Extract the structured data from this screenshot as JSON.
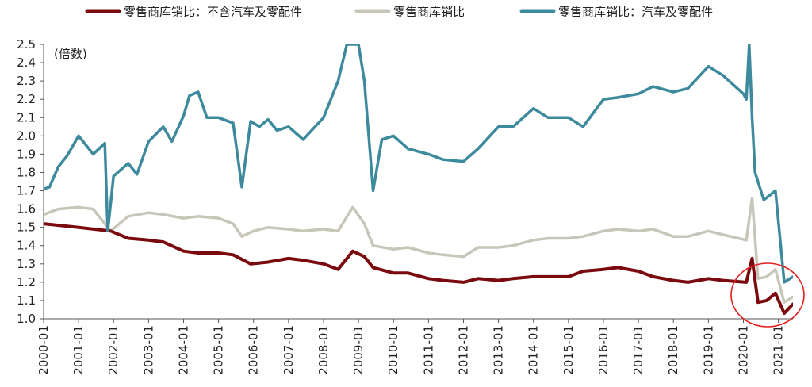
{
  "chart_data": {
    "type": "line",
    "title": "",
    "unit_label": "(倍数)",
    "xlabel": "",
    "ylabel": "",
    "ylim": [
      1.0,
      2.5
    ],
    "yticks": [
      "1.0",
      "1.1",
      "1.2",
      "1.3",
      "1.4",
      "1.5",
      "1.6",
      "1.7",
      "1.8",
      "1.9",
      "2.0",
      "2.1",
      "2.2",
      "2.3",
      "2.4",
      "2.5"
    ],
    "x_range": [
      "2000-01",
      "2021-06"
    ],
    "xticks": [
      "2000-01",
      "2001-01",
      "2002-01",
      "2003-01",
      "2004-01",
      "2005-01",
      "2006-01",
      "2007-01",
      "2008-01",
      "2009-01",
      "2010-01",
      "2011-01",
      "2012-01",
      "2013-01",
      "2014-01",
      "2015-01",
      "2016-01",
      "2017-01",
      "2018-01",
      "2019-01",
      "2020-01",
      "2021-01"
    ],
    "grid": false,
    "legend": "top",
    "series": [
      {
        "name": "零售商库销比：不含汽车及零配件",
        "color": "#7b0a0e",
        "points": [
          [
            "2000-01",
            1.52
          ],
          [
            "2001-01",
            1.5
          ],
          [
            "2001-12",
            1.48
          ],
          [
            "2002-06",
            1.44
          ],
          [
            "2003-01",
            1.43
          ],
          [
            "2003-06",
            1.42
          ],
          [
            "2004-01",
            1.37
          ],
          [
            "2004-06",
            1.36
          ],
          [
            "2005-01",
            1.36
          ],
          [
            "2005-06",
            1.35
          ],
          [
            "2005-12",
            1.3
          ],
          [
            "2006-06",
            1.31
          ],
          [
            "2007-01",
            1.33
          ],
          [
            "2007-06",
            1.32
          ],
          [
            "2008-01",
            1.3
          ],
          [
            "2008-06",
            1.27
          ],
          [
            "2008-11",
            1.37
          ],
          [
            "2009-03",
            1.34
          ],
          [
            "2009-06",
            1.28
          ],
          [
            "2010-01",
            1.25
          ],
          [
            "2010-06",
            1.25
          ],
          [
            "2011-01",
            1.22
          ],
          [
            "2011-06",
            1.21
          ],
          [
            "2012-01",
            1.2
          ],
          [
            "2012-06",
            1.22
          ],
          [
            "2013-01",
            1.21
          ],
          [
            "2013-06",
            1.22
          ],
          [
            "2014-01",
            1.23
          ],
          [
            "2014-06",
            1.23
          ],
          [
            "2015-01",
            1.23
          ],
          [
            "2015-06",
            1.26
          ],
          [
            "2016-01",
            1.27
          ],
          [
            "2016-06",
            1.28
          ],
          [
            "2017-01",
            1.26
          ],
          [
            "2017-06",
            1.23
          ],
          [
            "2018-01",
            1.21
          ],
          [
            "2018-06",
            1.2
          ],
          [
            "2019-01",
            1.22
          ],
          [
            "2019-06",
            1.21
          ],
          [
            "2020-02",
            1.2
          ],
          [
            "2020-04",
            1.33
          ],
          [
            "2020-06",
            1.09
          ],
          [
            "2020-09",
            1.1
          ],
          [
            "2020-12",
            1.14
          ],
          [
            "2021-03",
            1.03
          ],
          [
            "2021-06",
            1.08
          ]
        ]
      },
      {
        "name": "零售商库销比",
        "color": "#c8c6b8",
        "points": [
          [
            "2000-01",
            1.57
          ],
          [
            "2000-06",
            1.6
          ],
          [
            "2001-01",
            1.61
          ],
          [
            "2001-06",
            1.6
          ],
          [
            "2001-12",
            1.48
          ],
          [
            "2002-06",
            1.56
          ],
          [
            "2003-01",
            1.58
          ],
          [
            "2003-06",
            1.57
          ],
          [
            "2004-01",
            1.55
          ],
          [
            "2004-06",
            1.56
          ],
          [
            "2005-01",
            1.55
          ],
          [
            "2005-06",
            1.52
          ],
          [
            "2005-09",
            1.45
          ],
          [
            "2006-01",
            1.48
          ],
          [
            "2006-06",
            1.5
          ],
          [
            "2007-01",
            1.49
          ],
          [
            "2007-06",
            1.48
          ],
          [
            "2008-01",
            1.49
          ],
          [
            "2008-06",
            1.48
          ],
          [
            "2008-11",
            1.61
          ],
          [
            "2009-03",
            1.52
          ],
          [
            "2009-06",
            1.4
          ],
          [
            "2010-01",
            1.38
          ],
          [
            "2010-06",
            1.39
          ],
          [
            "2011-01",
            1.36
          ],
          [
            "2011-06",
            1.35
          ],
          [
            "2012-01",
            1.34
          ],
          [
            "2012-06",
            1.39
          ],
          [
            "2013-01",
            1.39
          ],
          [
            "2013-06",
            1.4
          ],
          [
            "2014-01",
            1.43
          ],
          [
            "2014-06",
            1.44
          ],
          [
            "2015-01",
            1.44
          ],
          [
            "2015-06",
            1.45
          ],
          [
            "2016-01",
            1.48
          ],
          [
            "2016-06",
            1.49
          ],
          [
            "2017-01",
            1.48
          ],
          [
            "2017-06",
            1.49
          ],
          [
            "2018-01",
            1.45
          ],
          [
            "2018-06",
            1.45
          ],
          [
            "2019-01",
            1.48
          ],
          [
            "2019-06",
            1.46
          ],
          [
            "2020-02",
            1.43
          ],
          [
            "2020-04",
            1.66
          ],
          [
            "2020-06",
            1.22
          ],
          [
            "2020-09",
            1.23
          ],
          [
            "2020-12",
            1.27
          ],
          [
            "2021-03",
            1.09
          ],
          [
            "2021-06",
            1.12
          ]
        ]
      },
      {
        "name": "零售商库销比：汽车及零配件",
        "color": "#3d8a9d",
        "points": [
          [
            "2000-01",
            1.71
          ],
          [
            "2000-03",
            1.72
          ],
          [
            "2000-06",
            1.83
          ],
          [
            "2000-09",
            1.89
          ],
          [
            "2001-01",
            2.0
          ],
          [
            "2001-06",
            1.9
          ],
          [
            "2001-10",
            1.96
          ],
          [
            "2001-11",
            1.48
          ],
          [
            "2002-01",
            1.78
          ],
          [
            "2002-06",
            1.85
          ],
          [
            "2002-09",
            1.79
          ],
          [
            "2003-01",
            1.97
          ],
          [
            "2003-06",
            2.05
          ],
          [
            "2003-09",
            1.97
          ],
          [
            "2004-01",
            2.11
          ],
          [
            "2004-03",
            2.22
          ],
          [
            "2004-06",
            2.24
          ],
          [
            "2004-09",
            2.1
          ],
          [
            "2005-01",
            2.1
          ],
          [
            "2005-06",
            2.07
          ],
          [
            "2005-09",
            1.72
          ],
          [
            "2005-12",
            2.08
          ],
          [
            "2006-03",
            2.05
          ],
          [
            "2006-06",
            2.09
          ],
          [
            "2006-09",
            2.03
          ],
          [
            "2007-01",
            2.05
          ],
          [
            "2007-06",
            1.98
          ],
          [
            "2008-01",
            2.1
          ],
          [
            "2008-06",
            2.3
          ],
          [
            "2008-09",
            2.5
          ],
          [
            "2009-01",
            2.5
          ],
          [
            "2009-03",
            2.3
          ],
          [
            "2009-06",
            1.7
          ],
          [
            "2009-09",
            1.98
          ],
          [
            "2010-01",
            2.0
          ],
          [
            "2010-06",
            1.93
          ],
          [
            "2011-01",
            1.9
          ],
          [
            "2011-06",
            1.87
          ],
          [
            "2012-01",
            1.86
          ],
          [
            "2012-06",
            1.93
          ],
          [
            "2013-01",
            2.05
          ],
          [
            "2013-06",
            2.05
          ],
          [
            "2014-01",
            2.15
          ],
          [
            "2014-06",
            2.1
          ],
          [
            "2015-01",
            2.1
          ],
          [
            "2015-06",
            2.05
          ],
          [
            "2016-01",
            2.2
          ],
          [
            "2016-06",
            2.21
          ],
          [
            "2017-01",
            2.23
          ],
          [
            "2017-06",
            2.27
          ],
          [
            "2018-01",
            2.24
          ],
          [
            "2018-06",
            2.26
          ],
          [
            "2019-01",
            2.38
          ],
          [
            "2019-06",
            2.33
          ],
          [
            "2020-01",
            2.23
          ],
          [
            "2020-02",
            2.2
          ],
          [
            "2020-03",
            2.5
          ],
          [
            "2020-04",
            2.1
          ],
          [
            "2020-05",
            1.8
          ],
          [
            "2020-08",
            1.65
          ],
          [
            "2020-12",
            1.7
          ],
          [
            "2021-03",
            1.2
          ],
          [
            "2021-06",
            1.23
          ]
        ]
      }
    ]
  }
}
